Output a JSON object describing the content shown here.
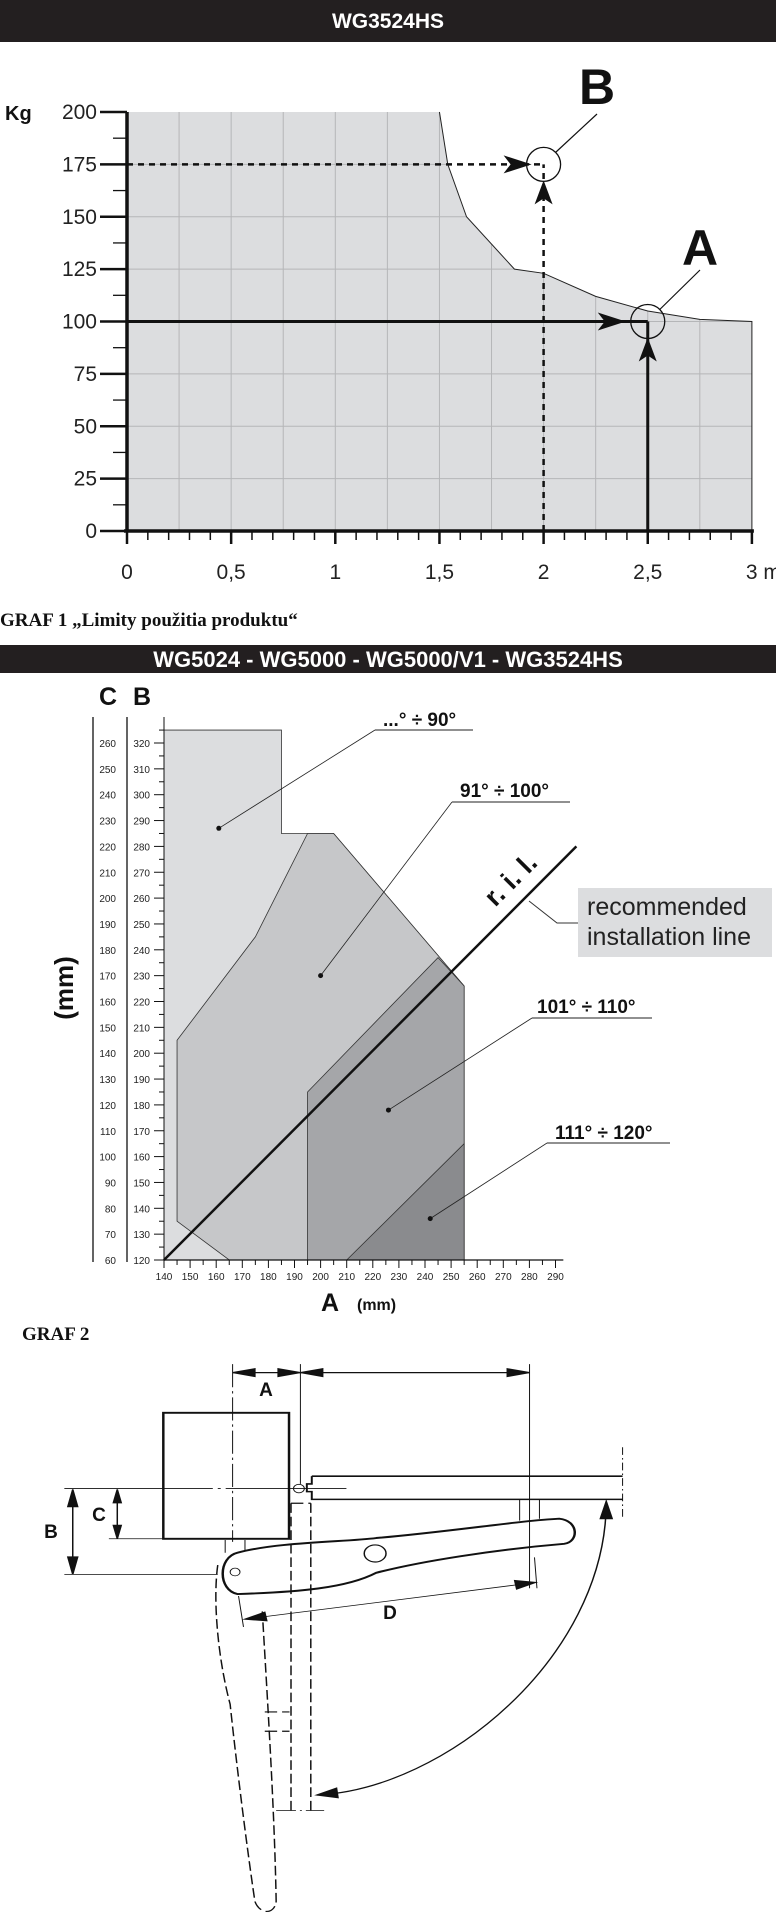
{
  "headers": {
    "chart1": "WG3524HS",
    "chart2": "WG5024 - WG5000 - WG5000/V1 - WG3524HS"
  },
  "captions": {
    "graf1": "GRAF 1 „Limity použitia produktu“",
    "graf2": "GRAF 2"
  },
  "chart_data": [
    {
      "type": "area",
      "title": "WG3524HS",
      "ylabel": "Kg",
      "xlabel": "m",
      "x_ticks": [
        "0",
        "0,5",
        "1",
        "1,5",
        "2",
        "2,5",
        "3 m"
      ],
      "x_tick_values": [
        0,
        0.5,
        1,
        1.5,
        2,
        2.5,
        3
      ],
      "y_ticks": [
        "0",
        "25",
        "50",
        "75",
        "100",
        "125",
        "150",
        "175",
        "200"
      ],
      "xlim": [
        0,
        3
      ],
      "ylim": [
        0,
        200
      ],
      "grid": true,
      "limit_curve": [
        [
          0,
          200
        ],
        [
          1.5,
          200
        ],
        [
          1.54,
          175
        ],
        [
          1.63,
          150
        ],
        [
          1.86,
          125
        ],
        [
          2,
          123
        ],
        [
          2.25,
          112
        ],
        [
          2.5,
          105
        ],
        [
          2.75,
          101
        ],
        [
          3,
          100
        ]
      ],
      "points": [
        {
          "label": "A",
          "x": 2.5,
          "y": 100,
          "style": "solid"
        },
        {
          "label": "B",
          "x": 2,
          "y": 175,
          "style": "dashed"
        }
      ]
    },
    {
      "type": "area",
      "title": "WG5024 - WG5000 - WG5000/V1 - WG3524HS",
      "xlabel": "A",
      "xunit": "(mm)",
      "yunit": "(mm)",
      "y_axes": [
        "C",
        "B"
      ],
      "xlim": [
        140,
        290
      ],
      "ylim": [
        120,
        320
      ],
      "x_ticks": [
        140,
        150,
        160,
        170,
        180,
        190,
        200,
        210,
        220,
        230,
        240,
        250,
        260,
        270,
        280,
        290
      ],
      "b_ticks": [
        120,
        130,
        140,
        150,
        160,
        170,
        180,
        190,
        200,
        210,
        220,
        230,
        240,
        250,
        260,
        270,
        280,
        290,
        300,
        310,
        320
      ],
      "c_ticks": [
        60,
        70,
        80,
        90,
        100,
        110,
        120,
        130,
        140,
        150,
        160,
        170,
        180,
        190,
        200,
        210,
        220,
        230,
        240,
        250,
        260
      ],
      "regions": [
        {
          "label": "...° ÷ 90°",
          "color": "#dcdddf",
          "polygon": [
            [
              140,
              325
            ],
            [
              185,
              325
            ],
            [
              185,
              285
            ],
            [
              205,
              285
            ],
            [
              255,
              226
            ],
            [
              255,
              120
            ],
            [
              140,
              120
            ]
          ],
          "dot": [
            161,
            287
          ]
        },
        {
          "label": "91° ÷ 100°",
          "color": "#c6c7c9",
          "polygon": [
            [
              145,
              135
            ],
            [
              145,
              205
            ],
            [
              175,
              245
            ],
            [
              195,
              285
            ],
            [
              205,
              285
            ],
            [
              255,
              226
            ],
            [
              255,
              120
            ],
            [
              165,
              120
            ]
          ],
          "dot": [
            200,
            230
          ]
        },
        {
          "label": "101° ÷ 110°",
          "color": "#a5a6a9",
          "polygon": [
            [
              195,
              120
            ],
            [
              195,
              185
            ],
            [
              245,
              237
            ],
            [
              255,
              226
            ],
            [
              255,
              120
            ]
          ],
          "dot": [
            226,
            178
          ]
        },
        {
          "label": "111° ÷ 120°",
          "color": "#8a8b8e",
          "polygon": [
            [
              210,
              120
            ],
            [
              255,
              165
            ],
            [
              255,
              120
            ]
          ],
          "dot": [
            242,
            136
          ]
        }
      ],
      "ril_line": [
        [
          140,
          120
        ],
        [
          298,
          280
        ]
      ],
      "ril_label": "r. i. l.",
      "ril_note": [
        "recommended",
        "installation line"
      ]
    }
  ],
  "diagram": {
    "labels": {
      "a": "A",
      "b": "B",
      "c": "C",
      "d": "D"
    }
  }
}
